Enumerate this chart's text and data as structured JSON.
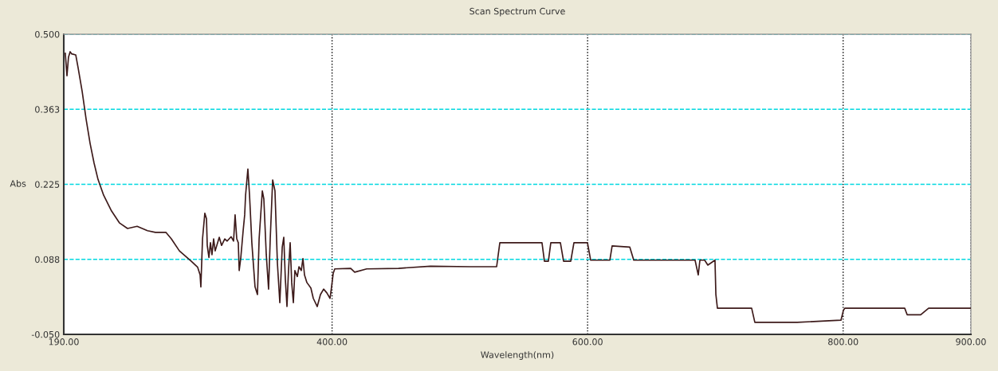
{
  "chart_data": {
    "type": "line",
    "title": "Scan Spectrum Curve",
    "xlabel": "Wavelength(nm)",
    "ylabel": "Abs",
    "xlim": [
      190,
      900
    ],
    "ylim": [
      -0.05,
      0.5
    ],
    "xticks": [
      {
        "value": 190,
        "label": "190.00"
      },
      {
        "value": 400,
        "label": "400.00"
      },
      {
        "value": 600,
        "label": "600.00"
      },
      {
        "value": 800,
        "label": "800.00"
      },
      {
        "value": 900,
        "label": "900.00"
      }
    ],
    "yticks": [
      {
        "value": -0.05,
        "label": "-0.050"
      },
      {
        "value": 0.0875,
        "label": "0.088"
      },
      {
        "value": 0.225,
        "label": "0.225"
      },
      {
        "value": 0.3625,
        "label": "0.363"
      },
      {
        "value": 0.5,
        "label": "0.500"
      }
    ],
    "grid": true,
    "marker": "none",
    "line_style": "solid",
    "series": [
      {
        "color": "#3d1a1a",
        "x": [
          191.2,
          192.5,
          193.7,
          195.0,
          196.2,
          199.4,
          201.2,
          204.4,
          207.5,
          210.6,
          213.7,
          216.8,
          221.2,
          227.4,
          233.7,
          239.9,
          247.4,
          255.5,
          261.7,
          269.9,
          274.2,
          280.5,
          289.8,
          294.8,
          296.7,
          297.3,
          298.6,
          300.4,
          301.7,
          302.3,
          303.6,
          304.8,
          306.0,
          307.3,
          308.5,
          311.7,
          313.5,
          316.0,
          317.9,
          321.0,
          322.9,
          324.1,
          325.4,
          326.6,
          327.3,
          328.5,
          330.4,
          331.6,
          332.3,
          334.1,
          335.4,
          337.2,
          339.7,
          341.6,
          342.9,
          345.4,
          346.6,
          348.5,
          350.3,
          351.6,
          353.5,
          355.3,
          357.2,
          359.1,
          361.0,
          362.2,
          363.4,
          364.7,
          365.9,
          367.2,
          368.4,
          369.7,
          370.9,
          372.8,
          374.1,
          375.9,
          377.2,
          378.4,
          380.3,
          383.4,
          385.3,
          388.4,
          390.9,
          393.4,
          395.9,
          398.4,
          399.6,
          400.9,
          402.1,
          414.6,
          417.7,
          427.1,
          452.0,
          477.0,
          508.2,
          528.8,
          531.3,
          564.3,
          566.2,
          569.3,
          571.2,
          578.7,
          581.2,
          586.8,
          589.3,
          599.9,
          602.4,
          617.4,
          619.2,
          633.0,
          636.1,
          684.1,
          686.6,
          687.9,
          691.6,
          694.1,
          699.7,
          700.4,
          701.6,
          728.4,
          730.9,
          764.0,
          789.0,
          798.3,
          800.2,
          801.4,
          848.2,
          850.1,
          860.7,
          866.9,
          900.0
        ],
        "values": [
          0.465,
          0.424,
          0.458,
          0.468,
          0.464,
          0.462,
          0.439,
          0.395,
          0.344,
          0.3,
          0.264,
          0.234,
          0.205,
          0.176,
          0.154,
          0.144,
          0.148,
          0.14,
          0.137,
          0.137,
          0.125,
          0.103,
          0.084,
          0.073,
          0.059,
          0.037,
          0.125,
          0.172,
          0.162,
          0.113,
          0.091,
          0.118,
          0.096,
          0.125,
          0.103,
          0.128,
          0.113,
          0.125,
          0.121,
          0.129,
          0.121,
          0.169,
          0.125,
          0.118,
          0.067,
          0.089,
          0.14,
          0.169,
          0.205,
          0.253,
          0.205,
          0.118,
          0.037,
          0.023,
          0.125,
          0.213,
          0.198,
          0.096,
          0.033,
          0.125,
          0.233,
          0.213,
          0.081,
          0.008,
          0.11,
          0.128,
          0.052,
          0.001,
          0.067,
          0.118,
          0.045,
          0.008,
          0.067,
          0.056,
          0.074,
          0.067,
          0.089,
          0.059,
          0.045,
          0.035,
          0.016,
          0.001,
          0.023,
          0.033,
          0.026,
          0.016,
          0.037,
          0.062,
          0.07,
          0.071,
          0.064,
          0.07,
          0.071,
          0.075,
          0.074,
          0.074,
          0.118,
          0.118,
          0.084,
          0.084,
          0.118,
          0.118,
          0.084,
          0.084,
          0.118,
          0.118,
          0.086,
          0.086,
          0.112,
          0.11,
          0.086,
          0.086,
          0.059,
          0.086,
          0.086,
          0.077,
          0.086,
          0.023,
          -0.002,
          -0.002,
          -0.028,
          -0.028,
          -0.025,
          -0.024,
          -0.006,
          -0.002,
          -0.002,
          -0.014,
          -0.014,
          -0.002,
          -0.002
        ]
      }
    ]
  }
}
